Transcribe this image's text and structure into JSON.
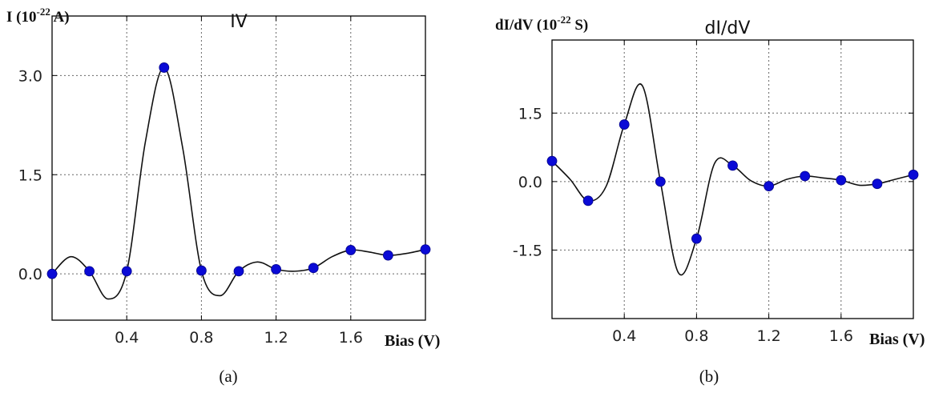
{
  "chart_data": [
    {
      "type": "line",
      "title": "IV",
      "ylabel": "I (10",
      "ylabel_exp": "-22",
      "ylabel_tail": " A)",
      "xlabel": "Bias (V)",
      "panel_label": "(a)",
      "xlim": [
        0.0,
        2.0
      ],
      "ylim": [
        -0.7,
        3.9
      ],
      "x_ticks": [
        0.4,
        0.8,
        1.2,
        1.6
      ],
      "x_tick_labels": [
        "0.4",
        "0.8",
        "1.2",
        "1.6"
      ],
      "y_ticks": [
        0.0,
        1.5,
        3.0
      ],
      "y_tick_labels": [
        "0.0",
        "1.5",
        "3.0"
      ],
      "grid": true,
      "markers": {
        "x": [
          0.0,
          0.2,
          0.4,
          0.6,
          0.8,
          1.0,
          1.2,
          1.4,
          1.6,
          1.8,
          2.0
        ],
        "y": [
          0.0,
          0.04,
          0.04,
          3.12,
          0.05,
          0.04,
          0.07,
          0.09,
          0.36,
          0.28,
          0.37
        ]
      },
      "curve": {
        "x": [
          0.0,
          0.1,
          0.2,
          0.3,
          0.4,
          0.5,
          0.6,
          0.7,
          0.8,
          0.9,
          1.0,
          1.1,
          1.2,
          1.3,
          1.4,
          1.5,
          1.6,
          1.7,
          1.8,
          1.9,
          2.0
        ],
        "y": [
          0.0,
          0.26,
          0.04,
          -0.38,
          0.04,
          2.0,
          3.12,
          1.9,
          0.05,
          -0.33,
          0.04,
          0.18,
          0.07,
          0.04,
          0.09,
          0.26,
          0.36,
          0.33,
          0.28,
          0.31,
          0.37
        ]
      },
      "color": "#0a0ad6"
    },
    {
      "type": "line",
      "title": "dI/dV",
      "ylabel": "dI/dV (10",
      "ylabel_exp": "-22",
      "ylabel_tail": " S)",
      "xlabel": "Bias (V)",
      "panel_label": "(b)",
      "xlim": [
        0.0,
        2.0
      ],
      "ylim": [
        -3.0,
        3.1
      ],
      "x_ticks": [
        0.4,
        0.8,
        1.2,
        1.6
      ],
      "x_tick_labels": [
        "0.4",
        "0.8",
        "1.2",
        "1.6"
      ],
      "y_ticks": [
        -1.5,
        0.0,
        1.5
      ],
      "y_tick_labels": [
        "-1.5",
        "0.0",
        "1.5"
      ],
      "grid": true,
      "markers": {
        "x": [
          0.0,
          0.2,
          0.4,
          0.6,
          0.8,
          1.0,
          1.2,
          1.4,
          1.6,
          1.8,
          2.0
        ],
        "y": [
          0.45,
          -0.42,
          1.25,
          0.0,
          -1.25,
          0.35,
          -0.1,
          0.12,
          0.03,
          -0.05,
          0.15
        ]
      },
      "curve": {
        "x": [
          0.0,
          0.1,
          0.2,
          0.3,
          0.4,
          0.5,
          0.6,
          0.7,
          0.8,
          0.9,
          1.0,
          1.1,
          1.2,
          1.3,
          1.4,
          1.5,
          1.6,
          1.7,
          1.8,
          1.9,
          2.0
        ],
        "y": [
          0.45,
          0.05,
          -0.42,
          -0.1,
          1.25,
          2.1,
          0.0,
          -2.0,
          -1.25,
          0.4,
          0.35,
          0.02,
          -0.1,
          0.05,
          0.12,
          0.08,
          0.03,
          -0.08,
          -0.05,
          0.05,
          0.15
        ]
      },
      "color": "#0a0ad6"
    }
  ]
}
